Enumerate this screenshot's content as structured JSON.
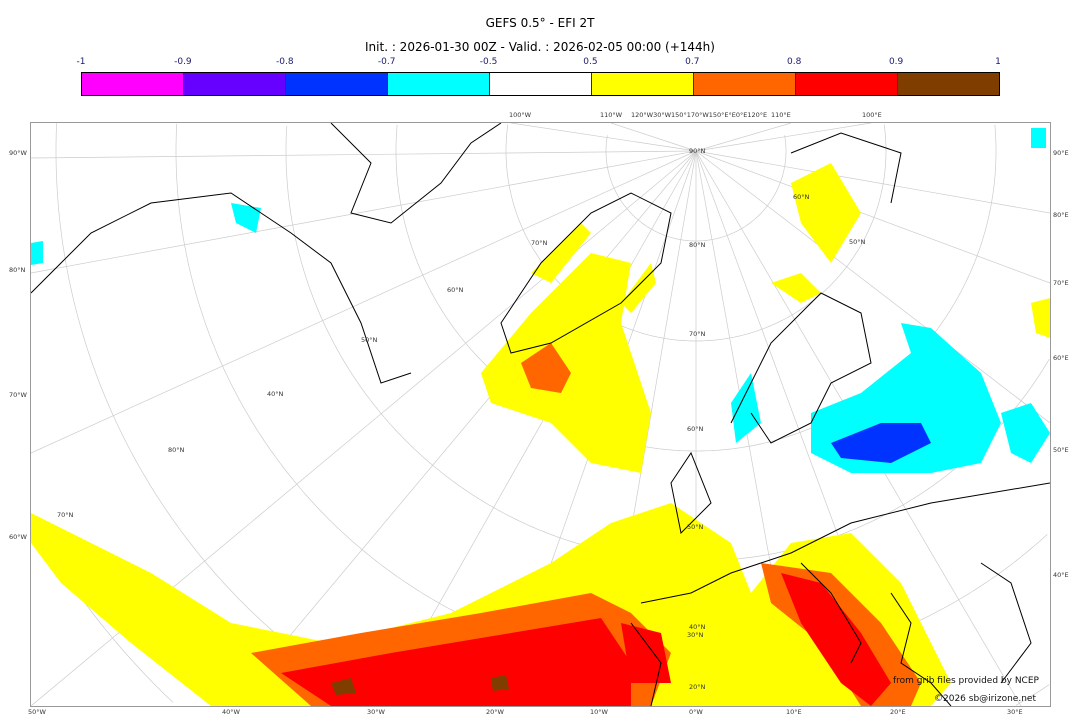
{
  "title": "GEFS 0.5° - EFI 2T",
  "subtitle": "Init. : 2026-01-30 00Z - Valid. : 2026-02-05 00:00 (+144h)",
  "colorbar": {
    "ticks": [
      "-1",
      "-0.9",
      "-0.8",
      "-0.7",
      "-0.5",
      "0.5",
      "0.7",
      "0.8",
      "0.9",
      "1"
    ],
    "colors": [
      "#ff00ff",
      "#6600ff",
      "#0033ff",
      "#00ffff",
      "#ffffff",
      "#ffff00",
      "#ff6600",
      "#ff0000",
      "#803d00"
    ]
  },
  "map": {
    "top_labels": [
      "100°W",
      "110°W",
      "120°W30°W150°170°W150°E°E0°E120°E",
      "110°E",
      "100°E"
    ],
    "bottom_labels": [
      "50°W",
      "40°W",
      "30°W",
      "20°W",
      "10°W",
      "0°W",
      "10°E",
      "20°E",
      "30°E"
    ],
    "left_labels": [
      "90°W",
      "80°N",
      "70°W",
      "60°W"
    ],
    "right_labels": [
      "90°E",
      "80°E",
      "70°E",
      "60°E",
      "50°E",
      "40°E"
    ],
    "inner_labels": [
      "90°N",
      "80°N",
      "70°N",
      "60°N",
      "50°N",
      "40°N",
      "30°N",
      "20°N",
      "70°N",
      "60°N",
      "50°N",
      "40°N",
      "80°N",
      "70°N",
      "60°N",
      "50°N"
    ],
    "credit": "from grib files provided by NCEP",
    "copyright": "©2026 sb@irizone.net"
  }
}
